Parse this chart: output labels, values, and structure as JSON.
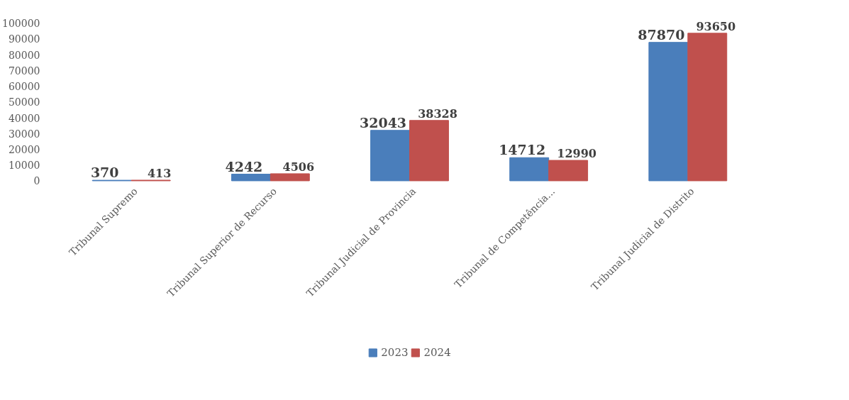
{
  "chart_data": {
    "type": "bar",
    "categories": [
      "Tribunal Supremo",
      "Tribunal Superior de Recurso",
      "Tribunal Judicial de Provincia",
      "Tribunal de Competência...",
      "Tribunal Judicial de Distrito"
    ],
    "series": [
      {
        "name": "2023",
        "color": "#4a7ebb",
        "values": [
          370,
          4242,
          32043,
          14712,
          87870
        ]
      },
      {
        "name": "2024",
        "color": "#c0504d",
        "values": [
          413,
          4506,
          38328,
          12990,
          93650
        ]
      }
    ],
    "ylim": [
      0,
      100000
    ],
    "yticks": [
      0,
      10000,
      20000,
      30000,
      40000,
      50000,
      60000,
      70000,
      80000,
      90000,
      100000
    ],
    "grid": false,
    "legend": "bottom",
    "data_labels": true
  }
}
